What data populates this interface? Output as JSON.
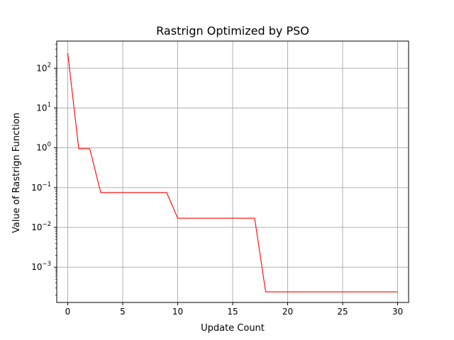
{
  "chart_data": {
    "type": "line",
    "title": "Rastrign Optimized by PSO",
    "xlabel": "Update Count",
    "ylabel": "Value of Rastrign Function",
    "xlim": [
      -1,
      31
    ],
    "ylim": [
      0.00013,
      480
    ],
    "yscale": "log",
    "grid": true,
    "x_ticks": [
      0,
      5,
      10,
      15,
      20,
      25,
      30
    ],
    "y_ticks": [
      {
        "value": 0.001,
        "base": "10",
        "exp": "−3"
      },
      {
        "value": 0.01,
        "base": "10",
        "exp": "−2"
      },
      {
        "value": 0.1,
        "base": "10",
        "exp": "−1"
      },
      {
        "value": 1,
        "base": "10",
        "exp": "0"
      },
      {
        "value": 10,
        "base": "10",
        "exp": "1"
      },
      {
        "value": 100,
        "base": "10",
        "exp": "2"
      }
    ],
    "series": [
      {
        "color": "#ff0000",
        "x": [
          0,
          1,
          2,
          3,
          4,
          5,
          6,
          7,
          8,
          9,
          10,
          11,
          12,
          13,
          14,
          15,
          16,
          17,
          18,
          19,
          20,
          21,
          22,
          23,
          24,
          25,
          26,
          27,
          28,
          29,
          30
        ],
        "y": [
          240,
          0.95,
          0.95,
          0.075,
          0.075,
          0.075,
          0.075,
          0.075,
          0.075,
          0.075,
          0.017,
          0.017,
          0.017,
          0.017,
          0.017,
          0.017,
          0.017,
          0.017,
          0.00024,
          0.00024,
          0.00024,
          0.00024,
          0.00024,
          0.00024,
          0.00024,
          0.00024,
          0.00024,
          0.00024,
          0.00024,
          0.00024,
          0.00024
        ]
      }
    ]
  }
}
